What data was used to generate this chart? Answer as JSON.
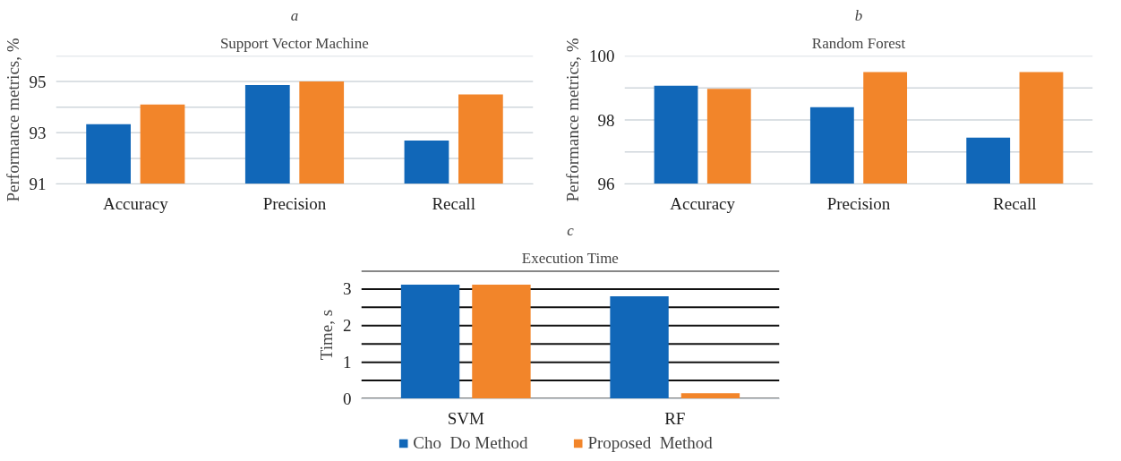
{
  "chart_data": [
    {
      "type": "bar",
      "subtitle": "a",
      "title": "Support Vector Machine",
      "ylabel": "Performance metrics, %",
      "categories": [
        "Accuracy",
        "Precision",
        "Recall"
      ],
      "series": [
        {
          "color": "#1167b8",
          "values": [
            93.33,
            94.86,
            92.7
          ]
        },
        {
          "color": "#f2852a",
          "values": [
            94.1,
            95.0,
            94.5
          ]
        }
      ],
      "ylim": [
        91,
        96
      ],
      "yticks": [
        91,
        {
          "value": 92,
          "label": null
        },
        93,
        {
          "value": 94,
          "label": null
        },
        95,
        {
          "value": 96,
          "label": null
        }
      ],
      "grid": "y",
      "legend": false
    },
    {
      "type": "bar",
      "subtitle": "b",
      "title": "Random Forest",
      "ylabel": "Performance metrics, %",
      "categories": [
        "Accuracy",
        "Precision",
        "Recall"
      ],
      "series": [
        {
          "color": "#1167b8",
          "values": [
            99.07,
            98.4,
            97.45
          ]
        },
        {
          "color": "#f2852a",
          "values": [
            98.97,
            99.5,
            99.5
          ]
        }
      ],
      "ylim": [
        96,
        100
      ],
      "yticks": [
        96,
        {
          "value": 97,
          "label": null
        },
        98,
        {
          "value": 99,
          "label": null
        },
        100
      ],
      "grid": "y",
      "legend": false
    },
    {
      "type": "bar",
      "subtitle": "c",
      "title": "Execution Time",
      "ylabel": "Time, s",
      "categories": [
        "SVM",
        "RF"
      ],
      "series": [
        {
          "name": "Cho  Do Method",
          "color": "#1167b8",
          "values": [
            3.12,
            2.8
          ]
        },
        {
          "name": "Proposed  Method",
          "color": "#f2852a",
          "values": [
            3.12,
            0.15
          ]
        }
      ],
      "ylim": [
        0,
        3.5
      ],
      "yticks": [
        0,
        {
          "value": 0.5,
          "label": null
        },
        1,
        {
          "value": 1.5,
          "label": null
        },
        2,
        {
          "value": 2.5,
          "label": null
        },
        3,
        {
          "value": 3.5,
          "label": null
        }
      ],
      "grid": "y",
      "legend": "bottom"
    }
  ]
}
